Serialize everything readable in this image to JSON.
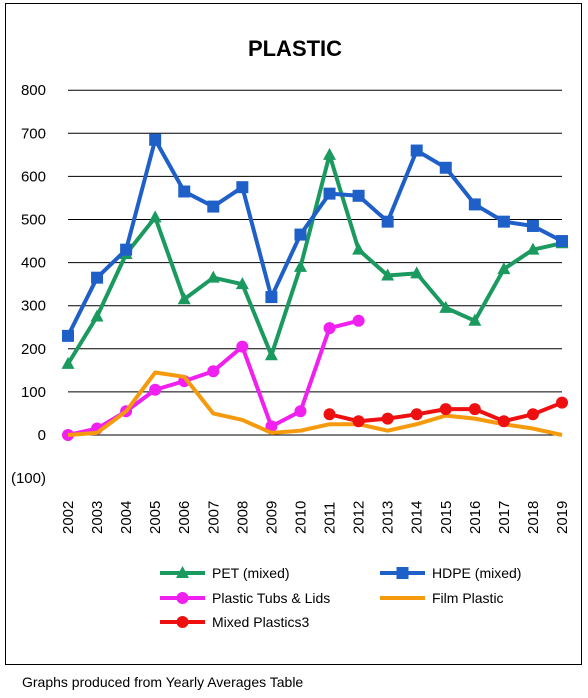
{
  "chart_data": {
    "type": "line",
    "title": "PLASTIC",
    "xlabel": "",
    "ylabel": "",
    "ylim": [
      -100,
      800
    ],
    "yticks": [
      -100,
      0,
      100,
      200,
      300,
      400,
      500,
      600,
      700,
      800
    ],
    "ytick_labels": [
      "(100)",
      "0",
      "100",
      "200",
      "300",
      "400",
      "500",
      "600",
      "700",
      "800"
    ],
    "categories": [
      "2002",
      "2003",
      "2004",
      "2005",
      "2006",
      "2007",
      "2008",
      "2009",
      "2010",
      "2011",
      "2012",
      "2013",
      "2014",
      "2015",
      "2016",
      "2017",
      "2018",
      "2019"
    ],
    "grid": "horizontal",
    "legend_position": "bottom",
    "series": [
      {
        "name": "PET (mixed)",
        "color": "#1b9a5f",
        "marker": "triangle",
        "values": [
          165,
          275,
          420,
          505,
          315,
          365,
          350,
          185,
          390,
          650,
          430,
          370,
          375,
          295,
          265,
          385,
          430,
          445
        ]
      },
      {
        "name": "HDPE (mixed)",
        "color": "#1f60c8",
        "marker": "square",
        "values": [
          230,
          365,
          430,
          685,
          565,
          530,
          575,
          320,
          465,
          560,
          555,
          495,
          660,
          620,
          535,
          495,
          485,
          450
        ]
      },
      {
        "name": "Plastic Tubs & Lids",
        "color": "#f020f0",
        "marker": "circle",
        "values": [
          0,
          15,
          55,
          105,
          125,
          148,
          205,
          20,
          55,
          248,
          265,
          null,
          null,
          null,
          null,
          null,
          null,
          null
        ]
      },
      {
        "name": "Film Plastic",
        "color": "#f59a0c",
        "marker": "none",
        "values": [
          0,
          5,
          55,
          145,
          135,
          50,
          35,
          5,
          10,
          25,
          25,
          10,
          25,
          45,
          38,
          25,
          15,
          0
        ]
      },
      {
        "name": "Mixed Plastics3",
        "color": "#ee1010",
        "marker": "circle",
        "values": [
          null,
          null,
          null,
          null,
          null,
          null,
          null,
          null,
          null,
          48,
          32,
          38,
          48,
          60,
          60,
          32,
          48,
          75
        ]
      }
    ]
  },
  "footnote": "Graphs produced from Yearly Averages Table"
}
